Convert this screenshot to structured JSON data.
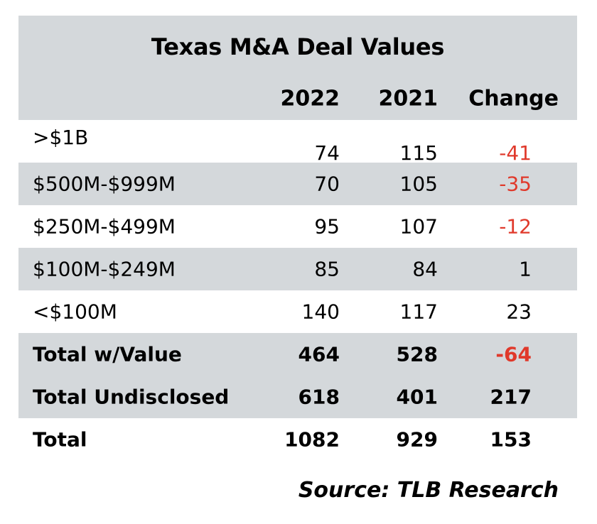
{
  "chart_data": {
    "type": "table",
    "title": "Texas M&A Deal Values",
    "columns": [
      "",
      "2022",
      "2021",
      "Change"
    ],
    "rows": [
      {
        "label": ">$1B",
        "v2022": "74",
        "v2021": "115",
        "change": "-41",
        "negative": true,
        "bold": false,
        "shaded": false
      },
      {
        "label": "$500M-$999M",
        "v2022": "70",
        "v2021": "105",
        "change": "-35",
        "negative": true,
        "bold": false,
        "shaded": true
      },
      {
        "label": "$250M-$499M",
        "v2022": "95",
        "v2021": "107",
        "change": "-12",
        "negative": true,
        "bold": false,
        "shaded": false
      },
      {
        "label": "$100M-$249M",
        "v2022": "85",
        "v2021": "84",
        "change": "1",
        "negative": false,
        "bold": false,
        "shaded": true
      },
      {
        "label": "<$100M",
        "v2022": "140",
        "v2021": "117",
        "change": "23",
        "negative": false,
        "bold": false,
        "shaded": false
      },
      {
        "label": "Total w/Value",
        "v2022": "464",
        "v2021": "528",
        "change": "-64",
        "negative": true,
        "bold": true,
        "shaded": true
      },
      {
        "label": "Total Undisclosed",
        "v2022": "618",
        "v2021": "401",
        "change": "217",
        "negative": false,
        "bold": true,
        "shaded": true
      },
      {
        "label": "Total",
        "v2022": "1082",
        "v2021": "929",
        "change": "153",
        "negative": false,
        "bold": true,
        "shaded": false
      }
    ],
    "source": "Source: TLB Research",
    "colors": {
      "band": "#d4d8db",
      "negative": "#e0392b"
    }
  }
}
